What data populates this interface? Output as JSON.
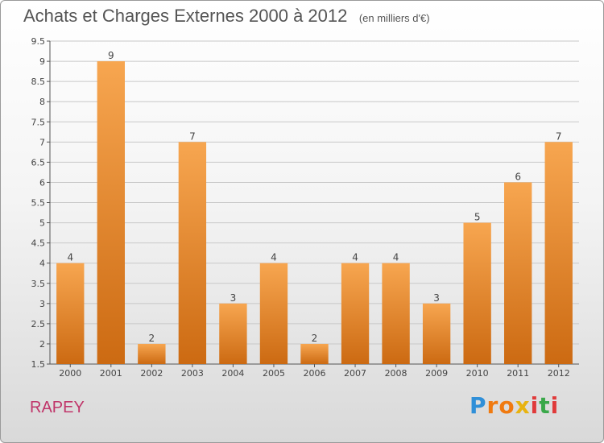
{
  "header": {
    "title": "Achats et Charges Externes 2000 à 2012",
    "unit": "(en milliers d'€)"
  },
  "footer": {
    "town": "RAPEY",
    "logo": "Proxiti"
  },
  "colors": {
    "bar_light": "#f7a650",
    "bar_dark": "#cc6a12",
    "grid": "#c8c8c8",
    "town_text": "#c0366a"
  },
  "chart_data": {
    "type": "bar",
    "title": "Achats et Charges Externes 2000 à 2012",
    "subtitle": "(en milliers d'€)",
    "categories": [
      "2000",
      "2001",
      "2002",
      "2003",
      "2004",
      "2005",
      "2006",
      "2007",
      "2008",
      "2009",
      "2010",
      "2011",
      "2012"
    ],
    "values": [
      4,
      9,
      2,
      7,
      3,
      4,
      2,
      4,
      4,
      3,
      5,
      6,
      7
    ],
    "ylim": [
      1.5,
      9.5
    ],
    "yticks": [
      "1.5",
      "2",
      "2.5",
      "3",
      "3.5",
      "4",
      "4.5",
      "5",
      "5.5",
      "6",
      "6.5",
      "7",
      "7.5",
      "8",
      "8.5",
      "9",
      "9.5"
    ],
    "grid": true
  }
}
